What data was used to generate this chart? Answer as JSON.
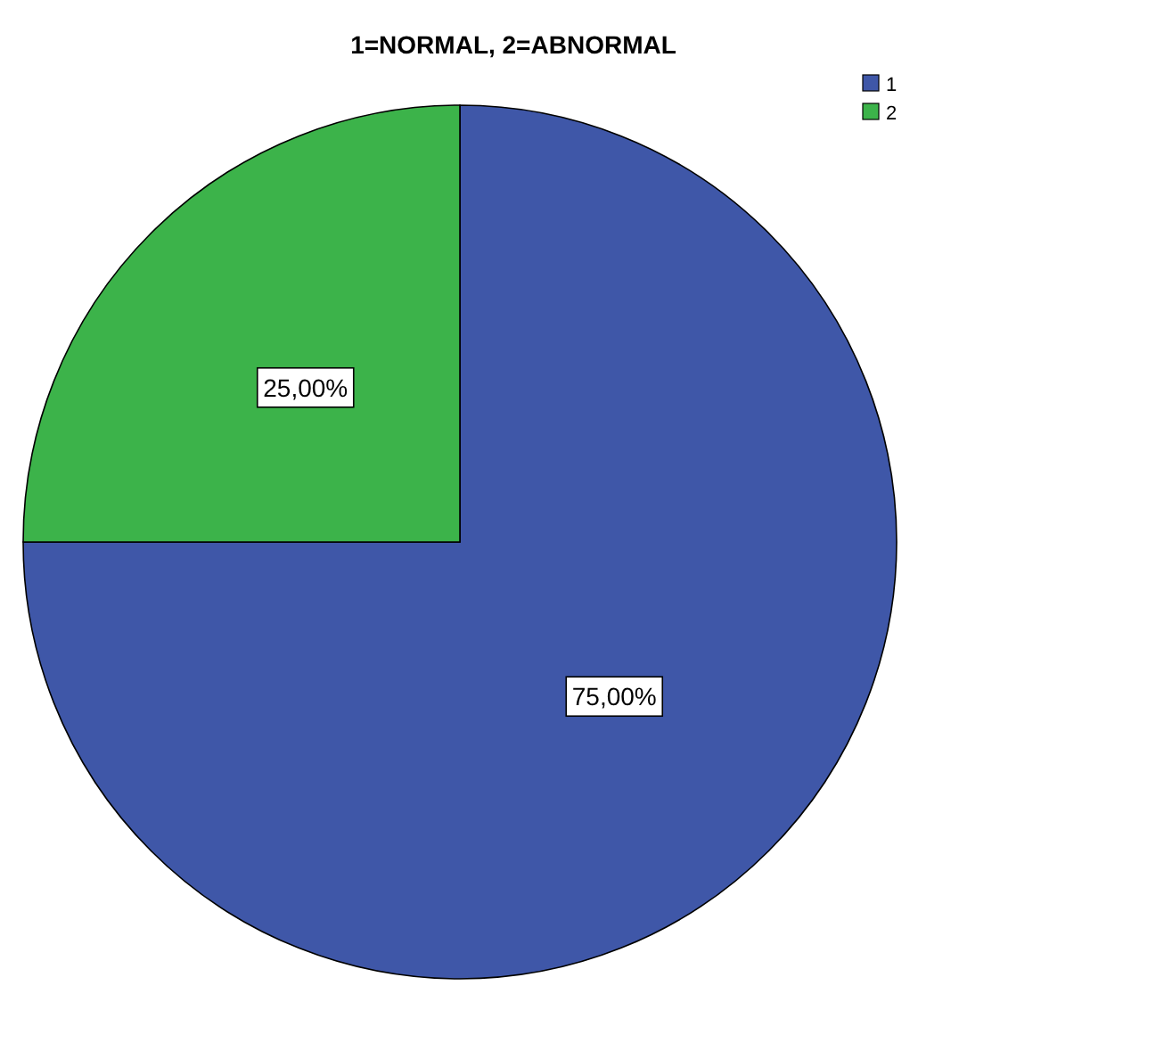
{
  "chart_data": {
    "type": "pie",
    "title": "1=NORMAL, 2=ABNORMAL",
    "categories": [
      "1",
      "2"
    ],
    "values": [
      75,
      25
    ],
    "colors": [
      "#3f57a8",
      "#3cb34a"
    ],
    "value_labels": [
      "75,00%",
      "25,00%"
    ],
    "legend": "top right"
  }
}
